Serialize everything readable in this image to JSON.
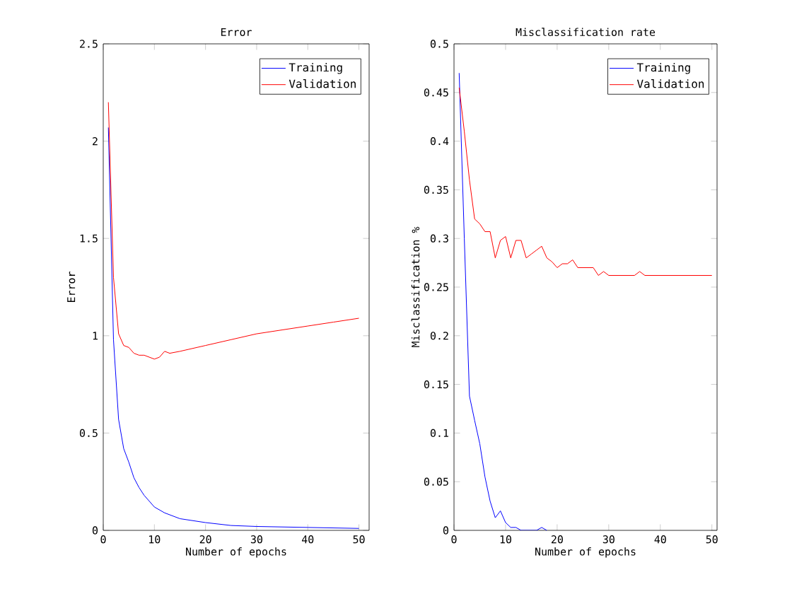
{
  "chart_data": [
    {
      "type": "line",
      "title": "Error",
      "xlabel": "Number of epochs",
      "ylabel": "Error",
      "xlim": [
        0,
        52
      ],
      "ylim": [
        0,
        2.5
      ],
      "xticks": [
        0,
        10,
        20,
        30,
        40,
        50
      ],
      "yticks": [
        0,
        0.5,
        1,
        1.5,
        2,
        2.5
      ],
      "legend": "top right",
      "grid": false,
      "series": [
        {
          "name": "Training",
          "color": "#0000ff",
          "x": [
            1,
            2,
            3,
            4,
            5,
            6,
            7,
            8,
            9,
            10,
            12,
            15,
            20,
            25,
            30,
            40,
            50
          ],
          "values": [
            2.07,
            0.98,
            0.57,
            0.42,
            0.35,
            0.27,
            0.22,
            0.18,
            0.15,
            0.12,
            0.09,
            0.06,
            0.04,
            0.025,
            0.02,
            0.015,
            0.01
          ]
        },
        {
          "name": "Validation",
          "color": "#ff0000",
          "x": [
            1,
            2,
            3,
            4,
            5,
            6,
            7,
            8,
            9,
            10,
            11,
            12,
            13,
            15,
            20,
            25,
            30,
            35,
            40,
            45,
            50
          ],
          "values": [
            2.2,
            1.3,
            1.01,
            0.95,
            0.94,
            0.91,
            0.9,
            0.9,
            0.89,
            0.88,
            0.89,
            0.92,
            0.91,
            0.92,
            0.95,
            0.98,
            1.01,
            1.03,
            1.05,
            1.07,
            1.09
          ]
        }
      ]
    },
    {
      "type": "line",
      "title": "Misclassification rate",
      "xlabel": "Number of epochs",
      "ylabel": "Misclassification %",
      "xlim": [
        0,
        51
      ],
      "ylim": [
        0,
        0.5
      ],
      "xticks": [
        0,
        10,
        20,
        30,
        40,
        50
      ],
      "yticks": [
        0,
        0.05,
        0.1,
        0.15,
        0.2,
        0.25,
        0.3,
        0.35,
        0.4,
        0.45,
        0.5
      ],
      "legend": "top right",
      "grid": false,
      "series": [
        {
          "name": "Training",
          "color": "#0000ff",
          "x": [
            1,
            2,
            3,
            4,
            5,
            6,
            7,
            8,
            9,
            10,
            11,
            12,
            13,
            16,
            17,
            18
          ],
          "values": [
            0.47,
            0.3,
            0.138,
            0.113,
            0.089,
            0.055,
            0.03,
            0.013,
            0.02,
            0.008,
            0.003,
            0.003,
            0,
            0,
            0.003,
            0
          ]
        },
        {
          "name": "Validation",
          "color": "#ff0000",
          "x": [
            1,
            2,
            3,
            4,
            5,
            6,
            7,
            8,
            9,
            10,
            11,
            12,
            13,
            14,
            15,
            16,
            17,
            18,
            19,
            20,
            21,
            22,
            23,
            24,
            27,
            28,
            29,
            30,
            35,
            36,
            37,
            50
          ],
          "values": [
            0.455,
            0.41,
            0.36,
            0.32,
            0.315,
            0.307,
            0.307,
            0.28,
            0.298,
            0.302,
            0.28,
            0.298,
            0.298,
            0.28,
            0.284,
            0.288,
            0.292,
            0.28,
            0.276,
            0.27,
            0.274,
            0.274,
            0.278,
            0.27,
            0.27,
            0.262,
            0.266,
            0.262,
            0.262,
            0.266,
            0.262,
            0.262
          ]
        }
      ]
    }
  ]
}
